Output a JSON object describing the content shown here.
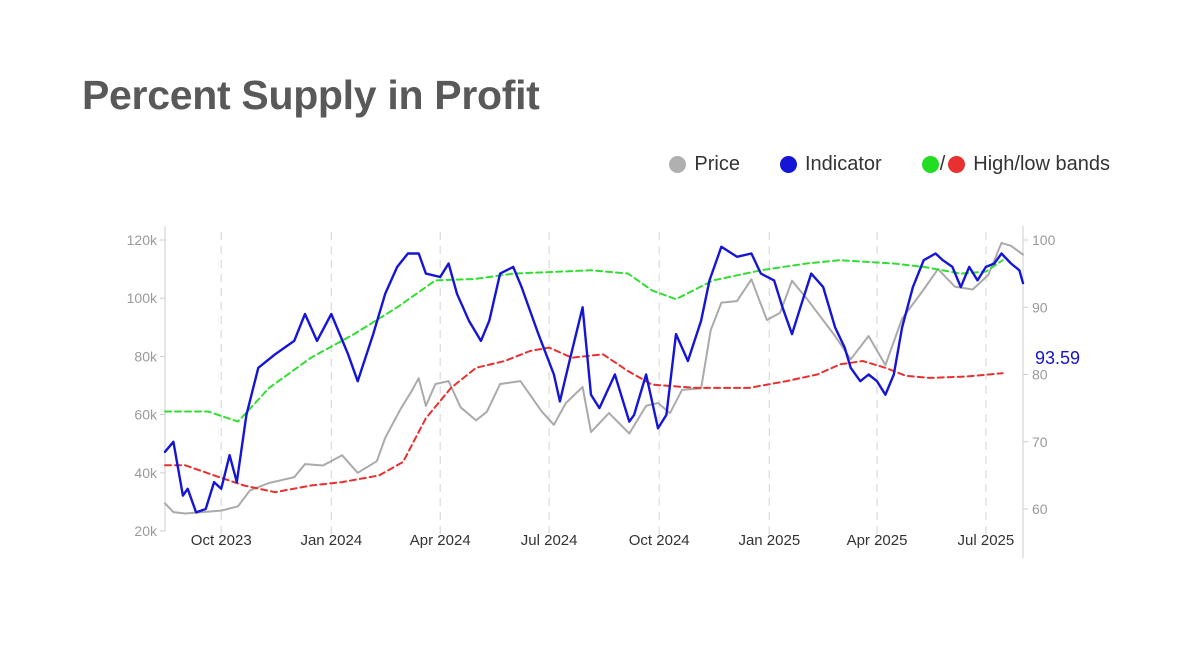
{
  "chart_data": {
    "type": "line",
    "title": "Percent Supply in Profit",
    "legend": {
      "placement": "top-right",
      "items": [
        {
          "label": "Price",
          "colors": [
            "#b0b0b0"
          ]
        },
        {
          "label": "Indicator",
          "colors": [
            "#1515d6"
          ]
        },
        {
          "label": "High/low bands",
          "colors": [
            "#22dd22",
            "#e83030"
          ],
          "separator": "/"
        }
      ]
    },
    "x_range": [
      "2023-08-15",
      "2025-08-01"
    ],
    "x_ticks": [
      {
        "date": "2023-10-01",
        "label": "Oct 2023"
      },
      {
        "date": "2024-01-01",
        "label": "Jan 2024"
      },
      {
        "date": "2024-04-01",
        "label": "Apr 2024"
      },
      {
        "date": "2024-07-01",
        "label": "Jul 2024"
      },
      {
        "date": "2024-10-01",
        "label": "Oct 2024"
      },
      {
        "date": "2025-01-01",
        "label": "Jan 2025"
      },
      {
        "date": "2025-04-01",
        "label": "Apr 2025"
      },
      {
        "date": "2025-07-01",
        "label": "Jul 2025"
      }
    ],
    "y_left": {
      "min": 20000,
      "max": 120000,
      "ticks": [
        {
          "value": 20000,
          "label": "20k"
        },
        {
          "value": 40000,
          "label": "40k"
        },
        {
          "value": 60000,
          "label": "60k"
        },
        {
          "value": 80000,
          "label": "80k"
        },
        {
          "value": 100000,
          "label": "100k"
        },
        {
          "value": 120000,
          "label": "120k"
        }
      ]
    },
    "y_right": {
      "min": 59,
      "max": 100,
      "ticks": [
        {
          "value": 60,
          "label": "60"
        },
        {
          "value": 70,
          "label": "70"
        },
        {
          "value": 80,
          "label": "80"
        },
        {
          "value": 90,
          "label": "90"
        },
        {
          "value": 100,
          "label": "100"
        }
      ]
    },
    "vertical_gridlines": true,
    "last_value_label": "93.59",
    "series": [
      {
        "name": "Price",
        "axis": "left",
        "color": "#aaaaaa",
        "dash": false,
        "width": 2,
        "points": [
          [
            "2023-08-15",
            29500
          ],
          [
            "2023-08-22",
            26500
          ],
          [
            "2023-09-01",
            26000
          ],
          [
            "2023-09-15",
            26500
          ],
          [
            "2023-10-01",
            27000
          ],
          [
            "2023-10-15",
            28500
          ],
          [
            "2023-10-25",
            34000
          ],
          [
            "2023-11-10",
            36500
          ],
          [
            "2023-12-01",
            38500
          ],
          [
            "2023-12-10",
            43000
          ],
          [
            "2023-12-25",
            42500
          ],
          [
            "2024-01-10",
            46000
          ],
          [
            "2024-01-23",
            40000
          ],
          [
            "2024-02-08",
            44000
          ],
          [
            "2024-02-15",
            52000
          ],
          [
            "2024-02-28",
            62000
          ],
          [
            "2024-03-08",
            68000
          ],
          [
            "2024-03-14",
            72500
          ],
          [
            "2024-03-20",
            63000
          ],
          [
            "2024-03-28",
            70500
          ],
          [
            "2024-04-08",
            71500
          ],
          [
            "2024-04-18",
            62500
          ],
          [
            "2024-05-01",
            58000
          ],
          [
            "2024-05-10",
            61000
          ],
          [
            "2024-05-21",
            70500
          ],
          [
            "2024-06-07",
            71500
          ],
          [
            "2024-06-25",
            61000
          ],
          [
            "2024-07-05",
            56500
          ],
          [
            "2024-07-15",
            64000
          ],
          [
            "2024-07-29",
            69500
          ],
          [
            "2024-08-05",
            54000
          ],
          [
            "2024-08-20",
            60500
          ],
          [
            "2024-09-06",
            53500
          ],
          [
            "2024-09-20",
            63000
          ],
          [
            "2024-09-30",
            64000
          ],
          [
            "2024-10-10",
            60500
          ],
          [
            "2024-10-20",
            68500
          ],
          [
            "2024-11-05",
            69000
          ],
          [
            "2024-11-13",
            89000
          ],
          [
            "2024-11-22",
            98500
          ],
          [
            "2024-12-05",
            99000
          ],
          [
            "2024-12-17",
            106500
          ],
          [
            "2024-12-30",
            92500
          ],
          [
            "2025-01-10",
            95000
          ],
          [
            "2025-01-20",
            106000
          ],
          [
            "2025-02-01",
            100000
          ],
          [
            "2025-02-25",
            87000
          ],
          [
            "2025-03-10",
            79000
          ],
          [
            "2025-03-25",
            87000
          ],
          [
            "2025-04-08",
            77000
          ],
          [
            "2025-04-22",
            93000
          ],
          [
            "2025-05-10",
            103000
          ],
          [
            "2025-05-22",
            110000
          ],
          [
            "2025-06-05",
            104000
          ],
          [
            "2025-06-20",
            103000
          ],
          [
            "2025-07-03",
            108000
          ],
          [
            "2025-07-14",
            119000
          ],
          [
            "2025-07-22",
            118000
          ],
          [
            "2025-08-01",
            115000
          ]
        ]
      },
      {
        "name": "High band",
        "axis": "right",
        "color": "#33dd33",
        "dash": true,
        "width": 2,
        "points": [
          [
            "2023-08-15",
            74.5
          ],
          [
            "2023-09-20",
            74.5
          ],
          [
            "2023-10-15",
            73
          ],
          [
            "2023-11-10",
            78
          ],
          [
            "2023-12-15",
            82.5
          ],
          [
            "2024-01-20",
            86
          ],
          [
            "2024-02-25",
            90
          ],
          [
            "2024-03-28",
            94
          ],
          [
            "2024-04-30",
            94.2
          ],
          [
            "2024-06-01",
            95
          ],
          [
            "2024-08-05",
            95.5
          ],
          [
            "2024-09-05",
            95
          ],
          [
            "2024-09-25",
            92.5
          ],
          [
            "2024-10-15",
            91.2
          ],
          [
            "2024-11-15",
            94
          ],
          [
            "2024-12-25",
            95.5
          ],
          [
            "2025-02-01",
            96.5
          ],
          [
            "2025-03-01",
            97
          ],
          [
            "2025-04-15",
            96.5
          ],
          [
            "2025-05-10",
            96
          ],
          [
            "2025-06-10",
            95
          ],
          [
            "2025-07-01",
            95.3
          ],
          [
            "2025-07-15",
            97
          ]
        ]
      },
      {
        "name": "Low band",
        "axis": "right",
        "color": "#e83030",
        "dash": true,
        "width": 2,
        "points": [
          [
            "2023-08-15",
            66.5
          ],
          [
            "2023-09-01",
            66.5
          ],
          [
            "2023-09-25",
            65
          ],
          [
            "2023-10-20",
            63.5
          ],
          [
            "2023-11-15",
            62.5
          ],
          [
            "2023-12-15",
            63.5
          ],
          [
            "2024-01-10",
            64
          ],
          [
            "2024-02-10",
            65
          ],
          [
            "2024-03-01",
            67
          ],
          [
            "2024-03-20",
            73.5
          ],
          [
            "2024-04-10",
            78
          ],
          [
            "2024-05-01",
            81
          ],
          [
            "2024-05-25",
            82
          ],
          [
            "2024-06-15",
            83.5
          ],
          [
            "2024-07-01",
            84
          ],
          [
            "2024-07-20",
            82.5
          ],
          [
            "2024-08-15",
            83
          ],
          [
            "2024-09-05",
            80.5
          ],
          [
            "2024-09-25",
            78.5
          ],
          [
            "2024-11-01",
            78
          ],
          [
            "2024-12-15",
            78
          ],
          [
            "2025-01-15",
            79
          ],
          [
            "2025-02-10",
            80
          ],
          [
            "2025-03-01",
            81.5
          ],
          [
            "2025-03-20",
            82
          ],
          [
            "2025-04-08",
            81
          ],
          [
            "2025-04-25",
            79.8
          ],
          [
            "2025-05-15",
            79.5
          ],
          [
            "2025-06-15",
            79.7
          ],
          [
            "2025-07-15",
            80.2
          ]
        ]
      },
      {
        "name": "Indicator",
        "axis": "right",
        "color": "#1515d6",
        "dash": false,
        "width": 2.4,
        "points": [
          [
            "2023-08-15",
            68.5
          ],
          [
            "2023-08-22",
            70
          ],
          [
            "2023-08-30",
            62
          ],
          [
            "2023-09-03",
            63
          ],
          [
            "2023-09-10",
            59.5
          ],
          [
            "2023-09-18",
            60
          ],
          [
            "2023-09-25",
            64
          ],
          [
            "2023-10-01",
            63
          ],
          [
            "2023-10-08",
            68
          ],
          [
            "2023-10-14",
            64
          ],
          [
            "2023-10-22",
            74
          ],
          [
            "2023-11-01",
            81
          ],
          [
            "2023-11-15",
            83
          ],
          [
            "2023-12-01",
            85
          ],
          [
            "2023-12-10",
            89
          ],
          [
            "2023-12-20",
            85
          ],
          [
            "2024-01-01",
            89
          ],
          [
            "2024-01-15",
            83
          ],
          [
            "2024-01-23",
            79
          ],
          [
            "2024-02-05",
            86
          ],
          [
            "2024-02-15",
            92
          ],
          [
            "2024-02-25",
            96
          ],
          [
            "2024-03-05",
            98
          ],
          [
            "2024-03-14",
            98
          ],
          [
            "2024-03-20",
            95
          ],
          [
            "2024-04-01",
            94.5
          ],
          [
            "2024-04-08",
            96.5
          ],
          [
            "2024-04-15",
            92
          ],
          [
            "2024-04-25",
            88
          ],
          [
            "2024-05-05",
            85
          ],
          [
            "2024-05-12",
            88
          ],
          [
            "2024-05-21",
            95
          ],
          [
            "2024-06-01",
            96
          ],
          [
            "2024-06-08",
            93
          ],
          [
            "2024-06-22",
            86
          ],
          [
            "2024-07-05",
            80
          ],
          [
            "2024-07-10",
            76
          ],
          [
            "2024-07-18",
            82
          ],
          [
            "2024-07-29",
            90
          ],
          [
            "2024-08-05",
            77
          ],
          [
            "2024-08-12",
            75
          ],
          [
            "2024-08-25",
            80
          ],
          [
            "2024-09-06",
            73
          ],
          [
            "2024-09-10",
            74
          ],
          [
            "2024-09-20",
            80
          ],
          [
            "2024-09-30",
            72
          ],
          [
            "2024-10-07",
            74
          ],
          [
            "2024-10-15",
            86
          ],
          [
            "2024-10-25",
            82
          ],
          [
            "2024-11-05",
            88
          ],
          [
            "2024-11-12",
            94
          ],
          [
            "2024-11-22",
            99
          ],
          [
            "2024-12-05",
            97.5
          ],
          [
            "2024-12-17",
            98
          ],
          [
            "2024-12-25",
            95
          ],
          [
            "2025-01-05",
            94
          ],
          [
            "2025-01-12",
            90
          ],
          [
            "2025-01-20",
            86
          ],
          [
            "2025-01-27",
            90
          ],
          [
            "2025-02-05",
            95
          ],
          [
            "2025-02-15",
            93
          ],
          [
            "2025-02-25",
            87
          ],
          [
            "2025-03-05",
            84
          ],
          [
            "2025-03-10",
            81
          ],
          [
            "2025-03-18",
            79
          ],
          [
            "2025-03-25",
            80
          ],
          [
            "2025-04-01",
            79
          ],
          [
            "2025-04-08",
            77
          ],
          [
            "2025-04-15",
            80
          ],
          [
            "2025-04-22",
            87
          ],
          [
            "2025-05-01",
            93
          ],
          [
            "2025-05-10",
            97
          ],
          [
            "2025-05-20",
            98
          ],
          [
            "2025-05-26",
            97
          ],
          [
            "2025-06-03",
            96
          ],
          [
            "2025-06-10",
            93
          ],
          [
            "2025-06-17",
            96
          ],
          [
            "2025-06-24",
            94
          ],
          [
            "2025-07-01",
            96
          ],
          [
            "2025-07-08",
            96.5
          ],
          [
            "2025-07-14",
            98
          ],
          [
            "2025-07-22",
            96.5
          ],
          [
            "2025-07-29",
            95.5
          ],
          [
            "2025-08-01",
            93.59
          ]
        ]
      }
    ]
  }
}
